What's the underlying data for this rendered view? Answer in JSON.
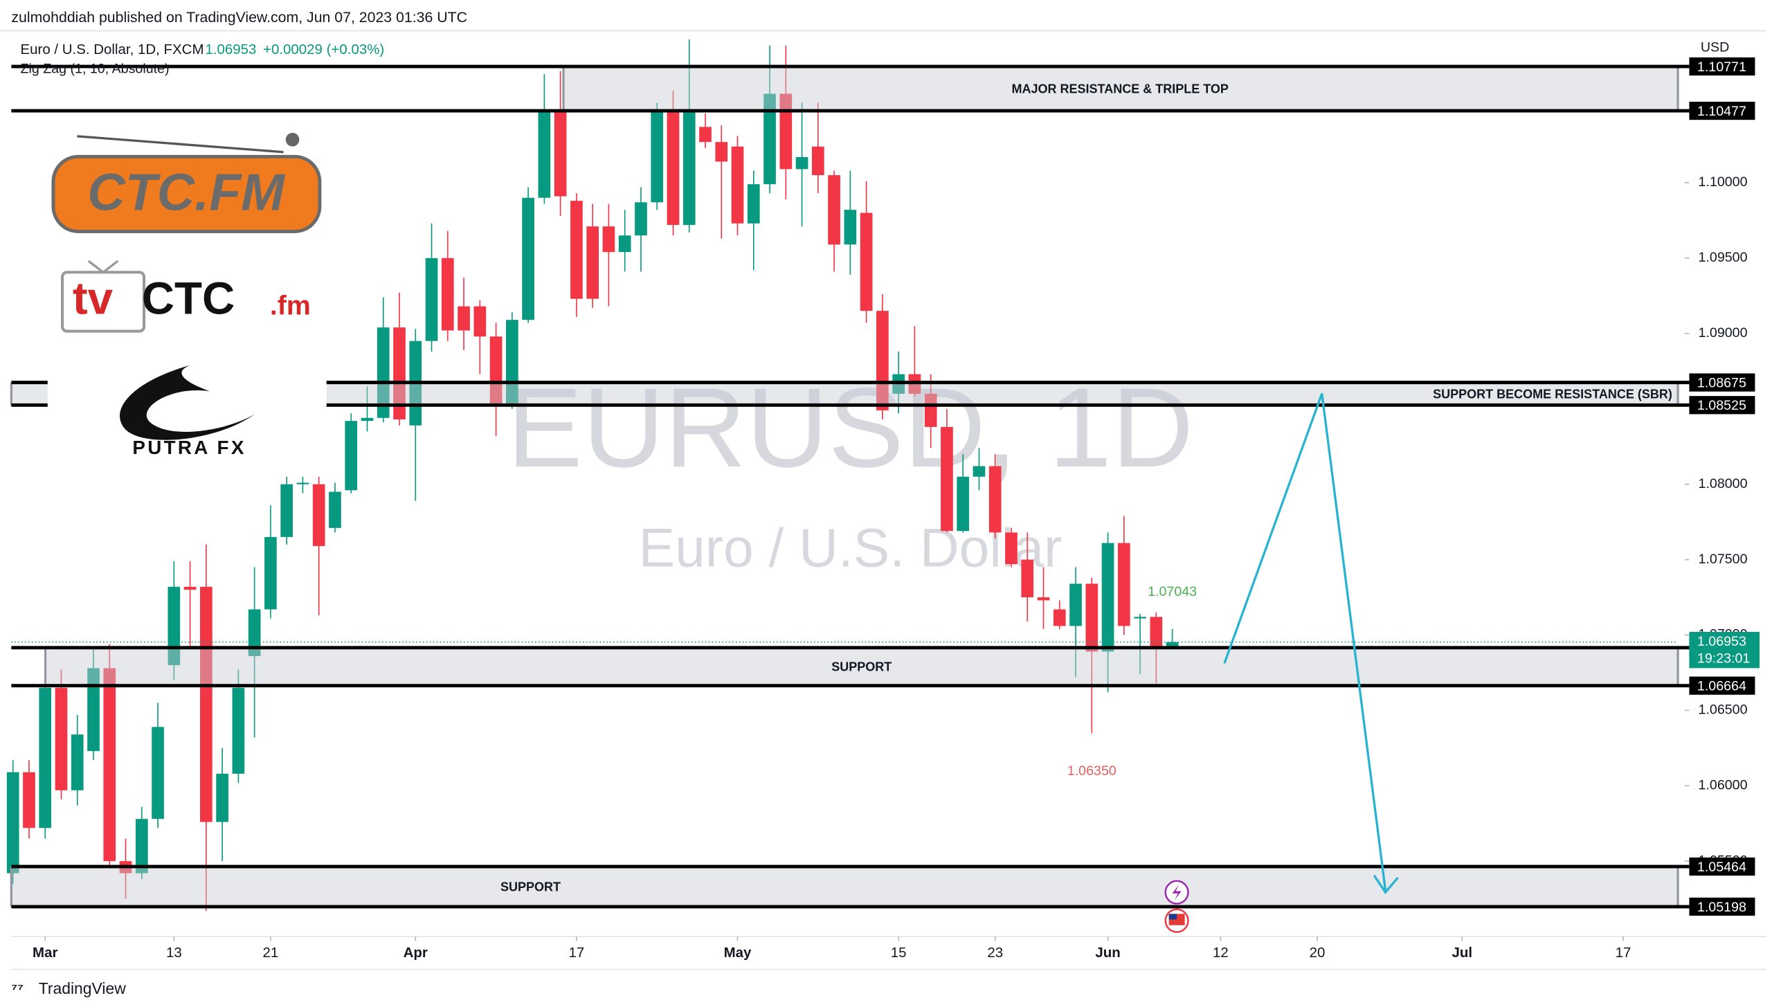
{
  "header": {
    "published": "zulmohddiah published on TradingView.com, Jun 07, 2023 01:36 UTC",
    "symbol": "Euro / U.S. Dollar, 1D, FXCM",
    "last": 1.06953,
    "change": "+0.00029 (+0.03%)",
    "indicator": "Zig Zag (1, 10, Absolute)",
    "currency": "USD",
    "countdown": "19:23:01",
    "brand": "TradingView"
  },
  "logos": {
    "ctc": "CTC.FM",
    "tv": "tv",
    "tv_main": "CTC",
    "tv_end": ".fm",
    "putra": "PUTRA FX"
  },
  "chart_data": {
    "type": "candlestick",
    "watermark": "EURUSD, 1D",
    "watermark_sub": "Euro / U.S. Dollar",
    "up_color": "#089981",
    "down_color": "#f23645",
    "open": [
      1.0542,
      1.0609,
      1.0572,
      1.0665,
      1.0597,
      1.0623,
      1.0678,
      1.055,
      1.0542,
      1.0578,
      1.068,
      1.0732,
      1.0732,
      1.0576,
      1.0608,
      1.0686,
      1.0717,
      1.0765,
      1.08,
      1.08,
      1.0771,
      1.0796,
      1.0842,
      1.0844,
      1.0904,
      1.0839,
      1.0895,
      1.095,
      1.0918,
      1.0918,
      1.0898,
      1.0853,
      1.0909,
      1.099,
      1.1047,
      1.0988,
      1.0971,
      1.0971,
      1.0954,
      1.0965,
      1.0987,
      1.1047,
      1.0972,
      1.1037,
      1.1027,
      1.1024,
      1.0973,
      1.0999,
      1.1059,
      1.1009,
      1.1024,
      1.1005,
      1.0959,
      1.098,
      1.0915,
      1.086,
      1.0873,
      1.086,
      1.0838,
      1.0769,
      1.0805,
      1.0812,
      1.0768,
      1.075,
      1.0725,
      1.0717,
      1.0706,
      1.0734,
      1.0689,
      1.0761,
      1.0711,
      1.0712,
      1.0692
    ],
    "high": [
      1.0617,
      1.0617,
      1.067,
      1.0677,
      1.0647,
      1.0692,
      1.0694,
      1.0565,
      1.0586,
      1.0655,
      1.0749,
      1.0749,
      1.076,
      1.0625,
      1.0677,
      1.0745,
      1.0786,
      1.0805,
      1.0805,
      1.0805,
      1.0801,
      1.0847,
      1.0865,
      1.0924,
      1.0927,
      1.0903,
      1.0973,
      1.0968,
      1.0937,
      1.0922,
      1.0907,
      1.0914,
      1.0997,
      1.1072,
      1.1074,
      1.0993,
      1.0986,
      1.0986,
      1.0982,
      1.0997,
      1.1053,
      1.1061,
      1.1095,
      1.1046,
      1.1038,
      1.1031,
      1.1008,
      1.1091,
      1.1091,
      1.1053,
      1.1053,
      1.1008,
      1.1008,
      1.1001,
      1.0926,
      1.0888,
      1.0905,
      1.0873,
      1.085,
      1.082,
      1.0824,
      1.082,
      1.0771,
      1.0768,
      1.0745,
      1.0723,
      1.0745,
      1.0738,
      1.0768,
      1.0779,
      1.0714,
      1.0715,
      1.0704
    ],
    "low": [
      1.0535,
      1.0565,
      1.0565,
      1.0591,
      1.0587,
      1.0617,
      1.0546,
      1.0525,
      1.0538,
      1.0572,
      1.067,
      1.0692,
      1.0517,
      1.055,
      1.0602,
      1.0632,
      1.0711,
      1.076,
      1.0794,
      1.0713,
      1.0768,
      1.0794,
      1.0835,
      1.0841,
      1.0839,
      1.0789,
      1.0888,
      1.0895,
      1.0889,
      1.0873,
      1.0832,
      1.085,
      1.0907,
      1.0986,
      1.0978,
      1.0911,
      1.0917,
      1.0918,
      1.0941,
      1.0941,
      1.0982,
      1.0965,
      1.0967,
      1.1023,
      1.0963,
      1.0965,
      1.0942,
      1.0993,
      1.0989,
      1.0971,
      1.0993,
      1.0941,
      1.0939,
      1.0907,
      1.0843,
      1.0847,
      1.0858,
      1.0824,
      1.0768,
      1.0768,
      1.0796,
      1.0764,
      1.0745,
      1.0709,
      1.0704,
      1.0704,
      1.0672,
      1.0635,
      1.0662,
      1.07,
      1.0674,
      1.0668,
      1.0691
    ],
    "close": [
      1.0609,
      1.0572,
      1.0665,
      1.0597,
      1.0634,
      1.0678,
      1.055,
      1.0542,
      1.0578,
      1.0639,
      1.0732,
      1.073,
      1.0576,
      1.0608,
      1.0665,
      1.0717,
      1.0765,
      1.08,
      1.0801,
      1.0759,
      1.0795,
      1.0842,
      1.0844,
      1.0904,
      1.0843,
      1.0895,
      1.095,
      1.0902,
      1.0902,
      1.0898,
      1.0853,
      1.0909,
      1.099,
      1.1047,
      1.0991,
      1.0923,
      1.0923,
      1.0954,
      1.0965,
      1.0987,
      1.1047,
      1.0972,
      1.1047,
      1.1027,
      1.1014,
      1.0973,
      1.0999,
      1.1059,
      1.1009,
      1.1017,
      1.1005,
      1.0959,
      1.0982,
      1.0915,
      1.0849,
      1.0873,
      1.086,
      1.0838,
      1.0769,
      1.0805,
      1.0812,
      1.0768,
      1.0747,
      1.0725,
      1.0723,
      1.0706,
      1.0734,
      1.0689,
      1.0761,
      1.0706,
      1.0712,
      1.0692,
      1.06953
    ],
    "xlim": [
      -0.1,
      103.4
    ],
    "xticks": [
      {
        "value": 2,
        "label": "Mar"
      },
      {
        "value": 10,
        "label": "13"
      },
      {
        "value": 16,
        "label": "21"
      },
      {
        "value": 25,
        "label": "Apr"
      },
      {
        "value": 35,
        "label": "17"
      },
      {
        "value": 45,
        "label": "May"
      },
      {
        "value": 55,
        "label": "15"
      },
      {
        "value": 61,
        "label": "23"
      },
      {
        "value": 68,
        "label": "Jun"
      },
      {
        "value": 75,
        "label": "12"
      },
      {
        "value": 81,
        "label": "20"
      },
      {
        "value": 90,
        "label": "Jul"
      },
      {
        "value": 100,
        "label": "17"
      }
    ],
    "ylim": [
      1.05,
      1.10985
    ],
    "yticks": [
      {
        "value": 1.055,
        "label": "1.05500"
      },
      {
        "value": 1.06,
        "label": "1.06000"
      },
      {
        "value": 1.065,
        "label": "1.06500"
      },
      {
        "value": 1.07,
        "label": "1.07000"
      },
      {
        "value": 1.075,
        "label": "1.07500"
      },
      {
        "value": 1.08,
        "label": "1.08000"
      },
      {
        "value": 1.09,
        "label": "1.09000"
      },
      {
        "value": 1.095,
        "label": "1.09500"
      },
      {
        "value": 1.1,
        "label": "1.10000"
      }
    ],
    "grid": false,
    "zones": [
      {
        "name": "MAJOR RESISTANCE & TRIPLE TOP",
        "top": 1.10771,
        "bottom": 1.10477
      },
      {
        "name": "SUPPORT BECOME RESISTANCE (SBR)",
        "top": 1.08675,
        "bottom": 1.08525
      },
      {
        "name": "SUPPORT",
        "top": 1.06916,
        "bottom": 1.06664
      },
      {
        "name": "SUPPORT",
        "top": 1.05464,
        "bottom": 1.05198
      }
    ],
    "pivots": [
      {
        "x": 72,
        "y": 1.07043,
        "color": "#4caf50"
      },
      {
        "x": 67,
        "y": {
          "value": 1.0635,
          "label": "1.06350"
        },
        "color": "#e0605f"
      }
    ]
  }
}
